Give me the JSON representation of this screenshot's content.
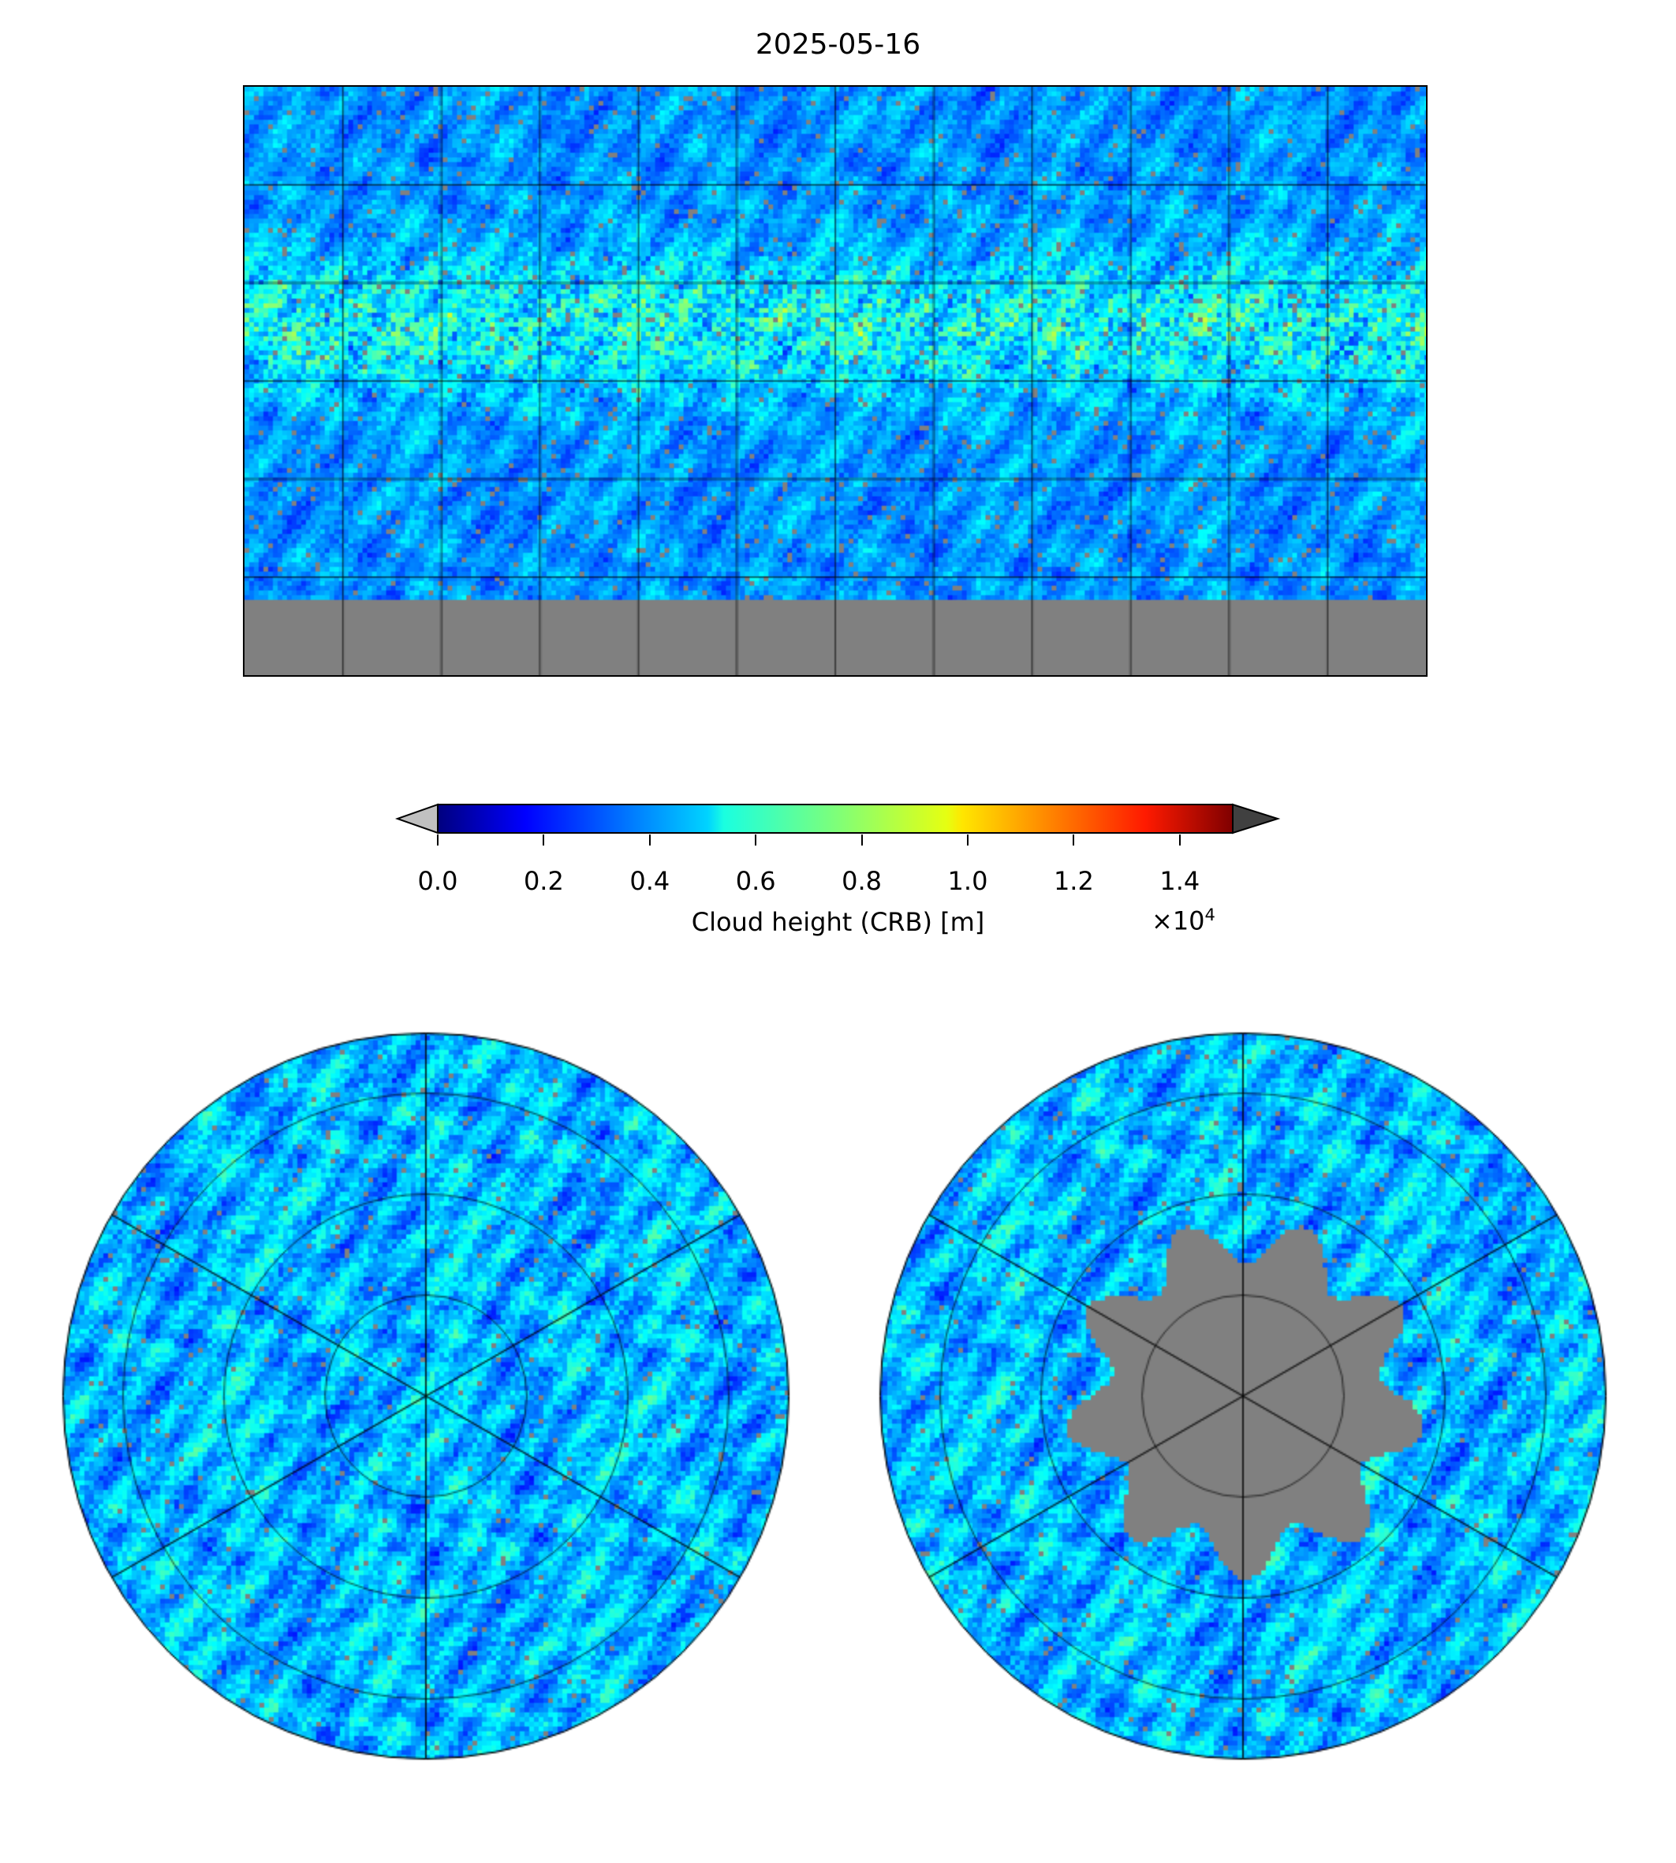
{
  "title": "2025-05-16",
  "colorbar": {
    "label": "Cloud height (CRB) [m]",
    "multiplier": "×10",
    "multiplier_exp": "4",
    "ticks": [
      "0.0",
      "0.2",
      "0.4",
      "0.6",
      "0.8",
      "1.0",
      "1.2",
      "1.4"
    ],
    "tick_values": [
      0.0,
      0.2,
      0.4,
      0.6,
      0.8,
      1.0,
      1.2,
      1.4
    ],
    "range": [
      0,
      1.5
    ],
    "colormap": "jet",
    "under_color": "#c0c0c0",
    "over_color": "#404040",
    "nodata_color": "#808080"
  },
  "panels": [
    "global-plate-carree",
    "north-polar-stereographic",
    "south-polar-stereographic"
  ]
}
